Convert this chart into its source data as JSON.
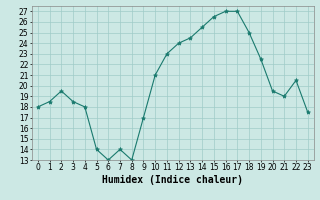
{
  "x": [
    0,
    1,
    2,
    3,
    4,
    5,
    6,
    7,
    8,
    9,
    10,
    11,
    12,
    13,
    14,
    15,
    16,
    17,
    18,
    19,
    20,
    21,
    22,
    23
  ],
  "y": [
    18,
    18.5,
    19.5,
    18.5,
    18,
    14,
    13,
    14,
    13,
    17,
    21,
    23,
    24,
    24.5,
    25.5,
    26.5,
    27,
    27,
    25,
    22.5,
    19.5,
    19,
    20.5,
    17.5
  ],
  "line_color": "#1a7a6e",
  "marker": "*",
  "marker_size": 3,
  "bg_color": "#cce8e4",
  "grid_color": "#a0ccc8",
  "xlabel": "Humidex (Indice chaleur)",
  "xlim": [
    -0.5,
    23.5
  ],
  "ylim": [
    13,
    27.5
  ],
  "yticks": [
    13,
    14,
    15,
    16,
    17,
    18,
    19,
    20,
    21,
    22,
    23,
    24,
    25,
    26,
    27
  ],
  "xticks": [
    0,
    1,
    2,
    3,
    4,
    5,
    6,
    7,
    8,
    9,
    10,
    11,
    12,
    13,
    14,
    15,
    16,
    17,
    18,
    19,
    20,
    21,
    22,
    23
  ],
  "tick_fontsize": 5.5,
  "label_fontsize": 7
}
